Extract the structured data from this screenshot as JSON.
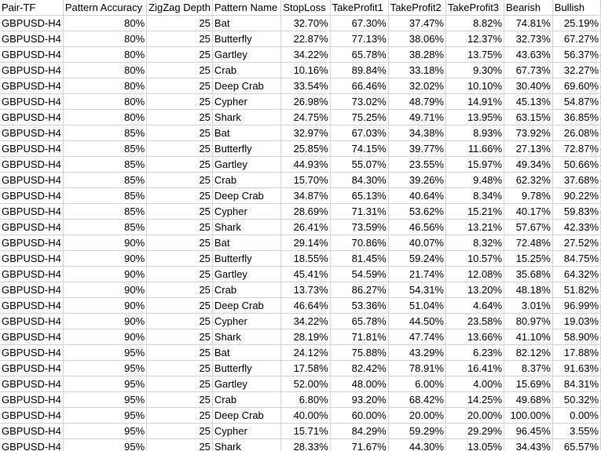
{
  "table": {
    "header": [
      "Pair-TF",
      "Pattern Accuracy",
      "ZigZag Depth",
      "Pattern Name",
      "StopLoss",
      "TakeProfit1",
      "TakeProfit2",
      "TakeProfit3",
      "Bearish",
      "Bullish"
    ],
    "rows": [
      [
        "GBPUSD-H4",
        "80%",
        "25",
        "Bat",
        "32.70%",
        "67.30%",
        "37.47%",
        "8.82%",
        "74.81%",
        "25.19%"
      ],
      [
        "GBPUSD-H4",
        "80%",
        "25",
        "Butterfly",
        "22.87%",
        "77.13%",
        "38.06%",
        "12.37%",
        "32.73%",
        "67.27%"
      ],
      [
        "GBPUSD-H4",
        "80%",
        "25",
        "Gartley",
        "34.22%",
        "65.78%",
        "38.28%",
        "13.75%",
        "43.63%",
        "56.37%"
      ],
      [
        "GBPUSD-H4",
        "80%",
        "25",
        "Crab",
        "10.16%",
        "89.84%",
        "33.18%",
        "9.30%",
        "67.73%",
        "32.27%"
      ],
      [
        "GBPUSD-H4",
        "80%",
        "25",
        "Deep Crab",
        "33.54%",
        "66.46%",
        "32.02%",
        "10.10%",
        "30.40%",
        "69.60%"
      ],
      [
        "GBPUSD-H4",
        "80%",
        "25",
        "Cypher",
        "26.98%",
        "73.02%",
        "48.79%",
        "14.91%",
        "45.13%",
        "54.87%"
      ],
      [
        "GBPUSD-H4",
        "80%",
        "25",
        "Shark",
        "24.75%",
        "75.25%",
        "49.71%",
        "13.95%",
        "63.15%",
        "36.85%"
      ],
      [
        "GBPUSD-H4",
        "85%",
        "25",
        "Bat",
        "32.97%",
        "67.03%",
        "34.38%",
        "8.93%",
        "73.92%",
        "26.08%"
      ],
      [
        "GBPUSD-H4",
        "85%",
        "25",
        "Butterfly",
        "25.85%",
        "74.15%",
        "39.77%",
        "11.66%",
        "27.13%",
        "72.87%"
      ],
      [
        "GBPUSD-H4",
        "85%",
        "25",
        "Gartley",
        "44.93%",
        "55.07%",
        "23.55%",
        "15.97%",
        "49.34%",
        "50.66%"
      ],
      [
        "GBPUSD-H4",
        "85%",
        "25",
        "Crab",
        "15.70%",
        "84.30%",
        "39.26%",
        "9.48%",
        "62.32%",
        "37.68%"
      ],
      [
        "GBPUSD-H4",
        "85%",
        "25",
        "Deep Crab",
        "34.87%",
        "65.13%",
        "40.64%",
        "8.34%",
        "9.78%",
        "90.22%"
      ],
      [
        "GBPUSD-H4",
        "85%",
        "25",
        "Cypher",
        "28.69%",
        "71.31%",
        "53.62%",
        "15.21%",
        "40.17%",
        "59.83%"
      ],
      [
        "GBPUSD-H4",
        "85%",
        "25",
        "Shark",
        "26.41%",
        "73.59%",
        "46.56%",
        "13.21%",
        "57.67%",
        "42.33%"
      ],
      [
        "GBPUSD-H4",
        "90%",
        "25",
        "Bat",
        "29.14%",
        "70.86%",
        "40.07%",
        "8.32%",
        "72.48%",
        "27.52%"
      ],
      [
        "GBPUSD-H4",
        "90%",
        "25",
        "Butterfly",
        "18.55%",
        "81.45%",
        "59.24%",
        "10.57%",
        "15.25%",
        "84.75%"
      ],
      [
        "GBPUSD-H4",
        "90%",
        "25",
        "Gartley",
        "45.41%",
        "54.59%",
        "21.74%",
        "12.08%",
        "35.68%",
        "64.32%"
      ],
      [
        "GBPUSD-H4",
        "90%",
        "25",
        "Crab",
        "13.73%",
        "86.27%",
        "54.31%",
        "13.20%",
        "48.18%",
        "51.82%"
      ],
      [
        "GBPUSD-H4",
        "90%",
        "25",
        "Deep Crab",
        "46.64%",
        "53.36%",
        "51.04%",
        "4.64%",
        "3.01%",
        "96.99%"
      ],
      [
        "GBPUSD-H4",
        "90%",
        "25",
        "Cypher",
        "34.22%",
        "65.78%",
        "44.50%",
        "23.58%",
        "80.97%",
        "19.03%"
      ],
      [
        "GBPUSD-H4",
        "90%",
        "25",
        "Shark",
        "28.19%",
        "71.81%",
        "47.74%",
        "13.66%",
        "41.10%",
        "58.90%"
      ],
      [
        "GBPUSD-H4",
        "95%",
        "25",
        "Bat",
        "24.12%",
        "75.88%",
        "43.29%",
        "6.23%",
        "82.12%",
        "17.88%"
      ],
      [
        "GBPUSD-H4",
        "95%",
        "25",
        "Butterfly",
        "17.58%",
        "82.42%",
        "78.91%",
        "16.41%",
        "8.37%",
        "91.63%"
      ],
      [
        "GBPUSD-H4",
        "95%",
        "25",
        "Gartley",
        "52.00%",
        "48.00%",
        "6.00%",
        "4.00%",
        "15.69%",
        "84.31%"
      ],
      [
        "GBPUSD-H4",
        "95%",
        "25",
        "Crab",
        "6.80%",
        "93.20%",
        "68.42%",
        "14.25%",
        "49.68%",
        "50.32%"
      ],
      [
        "GBPUSD-H4",
        "95%",
        "25",
        "Deep Crab",
        "40.00%",
        "60.00%",
        "20.00%",
        "20.00%",
        "100.00%",
        "0.00%"
      ],
      [
        "GBPUSD-H4",
        "95%",
        "25",
        "Cypher",
        "15.71%",
        "84.29%",
        "59.29%",
        "29.29%",
        "96.45%",
        "3.55%"
      ],
      [
        "GBPUSD-H4",
        "95%",
        "25",
        "Shark",
        "28.33%",
        "71.67%",
        "44.30%",
        "13.05%",
        "34.43%",
        "65.57%"
      ]
    ]
  }
}
